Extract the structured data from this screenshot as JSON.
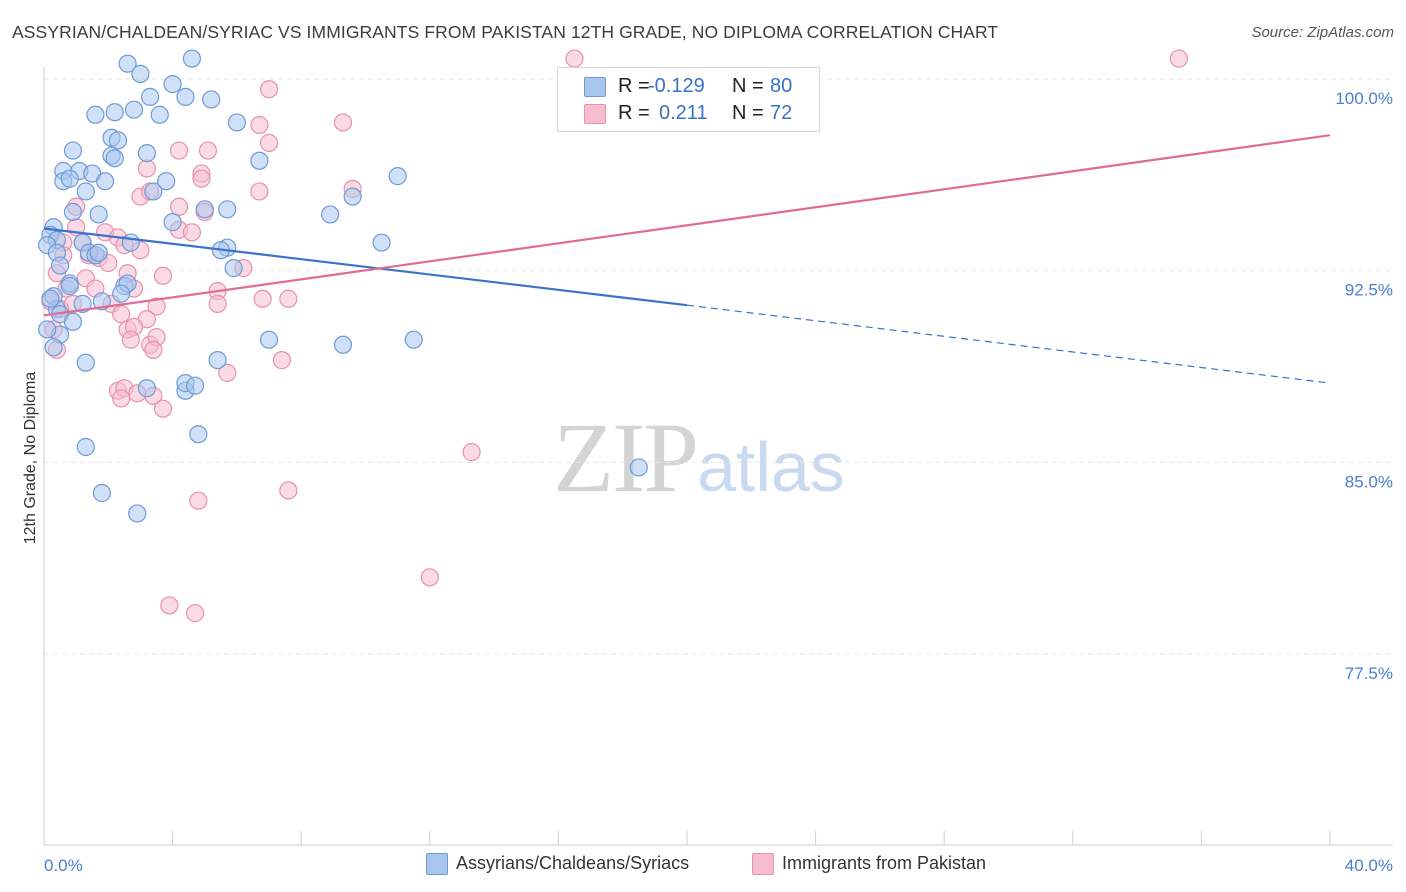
{
  "title": "ASSYRIAN/CHALDEAN/SYRIAC VS IMMIGRANTS FROM PAKISTAN 12TH GRADE, NO DIPLOMA CORRELATION CHART",
  "source": "Source: ZipAtlas.com",
  "watermark": {
    "zip": "ZIP",
    "atlas": "atlas"
  },
  "legend": {
    "r_label": "R =",
    "n_label": "N =",
    "series1": {
      "r": "-0.129",
      "n": "80"
    },
    "series2": {
      "r": "0.211",
      "n": "72"
    }
  },
  "bottom_legend": {
    "series1": "Assyrians/Chaldeans/Syriacs",
    "series2": "Immigrants from Pakistan"
  },
  "colors": {
    "series1_fill": "#a9c6ee",
    "series1_stroke": "#6f9ad6",
    "series1_line": "#3a72cc",
    "series2_fill": "#f6bdd0",
    "series2_stroke": "#e890ae",
    "series2_line": "#e06c96",
    "tick_color": "#4a7fd0",
    "grid": "#e6e6e6"
  },
  "chart_data": {
    "type": "scatter",
    "title": "ASSYRIAN/CHALDEAN/SYRIAC VS IMMIGRANTS FROM PAKISTAN 12TH GRADE, NO DIPLOMA CORRELATION CHART",
    "xlabel": "",
    "ylabel": "12th Grade, No Diploma",
    "xlim": [
      0,
      40
    ],
    "ylim": [
      70,
      101.5
    ],
    "x_tick_labels": [
      {
        "value": 0,
        "label": "0.0%"
      },
      {
        "value": 40,
        "label": "40.0%"
      }
    ],
    "y_ticks": [
      {
        "value": 77.5,
        "label": "77.5%"
      },
      {
        "value": 85.0,
        "label": "85.0%"
      },
      {
        "value": 92.5,
        "label": "92.5%"
      },
      {
        "value": 100.0,
        "label": "100.0%"
      }
    ],
    "x_minor_ticks": [
      0,
      4,
      8,
      12,
      16,
      20,
      24,
      28,
      32,
      36,
      40
    ],
    "series": [
      {
        "name": "Assyrians/Chaldeans/Syriacs",
        "r": -0.129,
        "n": 80,
        "trend": {
          "x0": 0,
          "y0": 94.15,
          "x1": 20,
          "y1": 91.15,
          "dash_x1": 40,
          "dash_y1": 88.1
        },
        "points": [
          [
            2.6,
            100.6
          ],
          [
            4.6,
            100.8
          ],
          [
            3.0,
            100.2
          ],
          [
            4.0,
            99.8
          ],
          [
            3.3,
            99.3
          ],
          [
            4.4,
            99.3
          ],
          [
            5.2,
            99.2
          ],
          [
            2.2,
            98.7
          ],
          [
            2.8,
            98.8
          ],
          [
            3.6,
            98.6
          ],
          [
            1.6,
            98.6
          ],
          [
            6.0,
            98.3
          ],
          [
            2.1,
            97.7
          ],
          [
            2.3,
            97.6
          ],
          [
            0.9,
            97.2
          ],
          [
            3.2,
            97.1
          ],
          [
            2.1,
            97.0
          ],
          [
            2.2,
            96.9
          ],
          [
            6.7,
            96.8
          ],
          [
            0.6,
            96.4
          ],
          [
            1.1,
            96.4
          ],
          [
            1.5,
            96.3
          ],
          [
            0.6,
            96.0
          ],
          [
            0.8,
            96.1
          ],
          [
            1.9,
            96.0
          ],
          [
            3.8,
            96.0
          ],
          [
            11.0,
            96.2
          ],
          [
            3.4,
            95.6
          ],
          [
            1.3,
            95.6
          ],
          [
            9.6,
            95.4
          ],
          [
            0.9,
            94.8
          ],
          [
            1.7,
            94.7
          ],
          [
            5.0,
            94.9
          ],
          [
            5.7,
            94.9
          ],
          [
            8.9,
            94.7
          ],
          [
            4.0,
            94.4
          ],
          [
            0.3,
            94.2
          ],
          [
            0.2,
            93.9
          ],
          [
            2.7,
            93.6
          ],
          [
            0.4,
            93.7
          ],
          [
            1.2,
            93.6
          ],
          [
            0.1,
            93.5
          ],
          [
            5.7,
            93.4
          ],
          [
            0.4,
            93.2
          ],
          [
            1.4,
            93.2
          ],
          [
            1.6,
            93.1
          ],
          [
            1.7,
            93.2
          ],
          [
            10.5,
            93.6
          ],
          [
            5.5,
            93.3
          ],
          [
            0.5,
            92.7
          ],
          [
            5.9,
            92.6
          ],
          [
            0.8,
            92.0
          ],
          [
            2.5,
            91.9
          ],
          [
            2.6,
            92.0
          ],
          [
            0.8,
            91.9
          ],
          [
            2.4,
            91.6
          ],
          [
            0.3,
            91.5
          ],
          [
            1.2,
            91.2
          ],
          [
            1.8,
            91.3
          ],
          [
            0.4,
            91.0
          ],
          [
            0.5,
            90.8
          ],
          [
            0.5,
            90.0
          ],
          [
            0.9,
            90.5
          ],
          [
            7.0,
            89.8
          ],
          [
            9.3,
            89.6
          ],
          [
            11.5,
            89.8
          ],
          [
            0.3,
            89.5
          ],
          [
            1.3,
            88.9
          ],
          [
            5.4,
            89.0
          ],
          [
            3.2,
            87.9
          ],
          [
            4.4,
            87.8
          ],
          [
            4.4,
            88.1
          ],
          [
            4.7,
            88.0
          ],
          [
            4.8,
            86.1
          ],
          [
            1.3,
            85.6
          ],
          [
            18.5,
            84.8
          ],
          [
            1.8,
            83.8
          ],
          [
            2.9,
            83.0
          ],
          [
            0.2,
            91.4
          ],
          [
            0.1,
            90.2
          ]
        ]
      },
      {
        "name": "Immigrants from Pakistan",
        "r": 0.211,
        "n": 72,
        "trend": {
          "x0": 0,
          "y0": 90.75,
          "x1": 40,
          "y1": 97.8
        },
        "points": [
          [
            16.5,
            100.8
          ],
          [
            35.3,
            100.8
          ],
          [
            7.0,
            99.6
          ],
          [
            6.7,
            98.2
          ],
          [
            9.3,
            98.3
          ],
          [
            7.0,
            97.5
          ],
          [
            4.2,
            97.2
          ],
          [
            5.1,
            97.2
          ],
          [
            3.2,
            96.5
          ],
          [
            4.9,
            96.3
          ],
          [
            4.9,
            96.1
          ],
          [
            9.6,
            95.7
          ],
          [
            3.0,
            95.4
          ],
          [
            3.3,
            95.6
          ],
          [
            6.7,
            95.6
          ],
          [
            1.0,
            95.0
          ],
          [
            4.2,
            95.0
          ],
          [
            5.0,
            94.8
          ],
          [
            1.0,
            94.2
          ],
          [
            1.9,
            94.0
          ],
          [
            2.3,
            93.8
          ],
          [
            4.2,
            94.1
          ],
          [
            4.6,
            94.0
          ],
          [
            0.6,
            93.6
          ],
          [
            1.2,
            93.6
          ],
          [
            2.5,
            93.5
          ],
          [
            3.0,
            93.3
          ],
          [
            0.6,
            93.1
          ],
          [
            1.4,
            93.1
          ],
          [
            1.7,
            93.0
          ],
          [
            2.0,
            92.8
          ],
          [
            6.2,
            92.6
          ],
          [
            0.4,
            92.4
          ],
          [
            1.3,
            92.2
          ],
          [
            2.6,
            92.4
          ],
          [
            3.7,
            92.3
          ],
          [
            0.7,
            91.8
          ],
          [
            1.6,
            91.8
          ],
          [
            2.8,
            91.8
          ],
          [
            5.4,
            91.7
          ],
          [
            0.2,
            91.3
          ],
          [
            0.9,
            91.2
          ],
          [
            2.1,
            91.2
          ],
          [
            3.5,
            91.1
          ],
          [
            6.8,
            91.4
          ],
          [
            7.6,
            91.4
          ],
          [
            5.4,
            91.2
          ],
          [
            0.5,
            91.0
          ],
          [
            2.4,
            90.8
          ],
          [
            3.2,
            90.6
          ],
          [
            0.3,
            90.2
          ],
          [
            2.6,
            90.2
          ],
          [
            2.8,
            90.3
          ],
          [
            2.7,
            89.8
          ],
          [
            3.3,
            89.6
          ],
          [
            3.5,
            89.9
          ],
          [
            0.4,
            89.4
          ],
          [
            3.4,
            89.4
          ],
          [
            7.4,
            89.0
          ],
          [
            5.7,
            88.5
          ],
          [
            2.3,
            87.8
          ],
          [
            2.5,
            87.9
          ],
          [
            2.9,
            87.7
          ],
          [
            3.4,
            87.6
          ],
          [
            2.4,
            87.5
          ],
          [
            3.7,
            87.1
          ],
          [
            13.3,
            85.4
          ],
          [
            7.6,
            83.9
          ],
          [
            4.8,
            83.5
          ],
          [
            12.0,
            80.5
          ],
          [
            3.9,
            79.4
          ],
          [
            4.7,
            79.1
          ]
        ]
      }
    ]
  }
}
